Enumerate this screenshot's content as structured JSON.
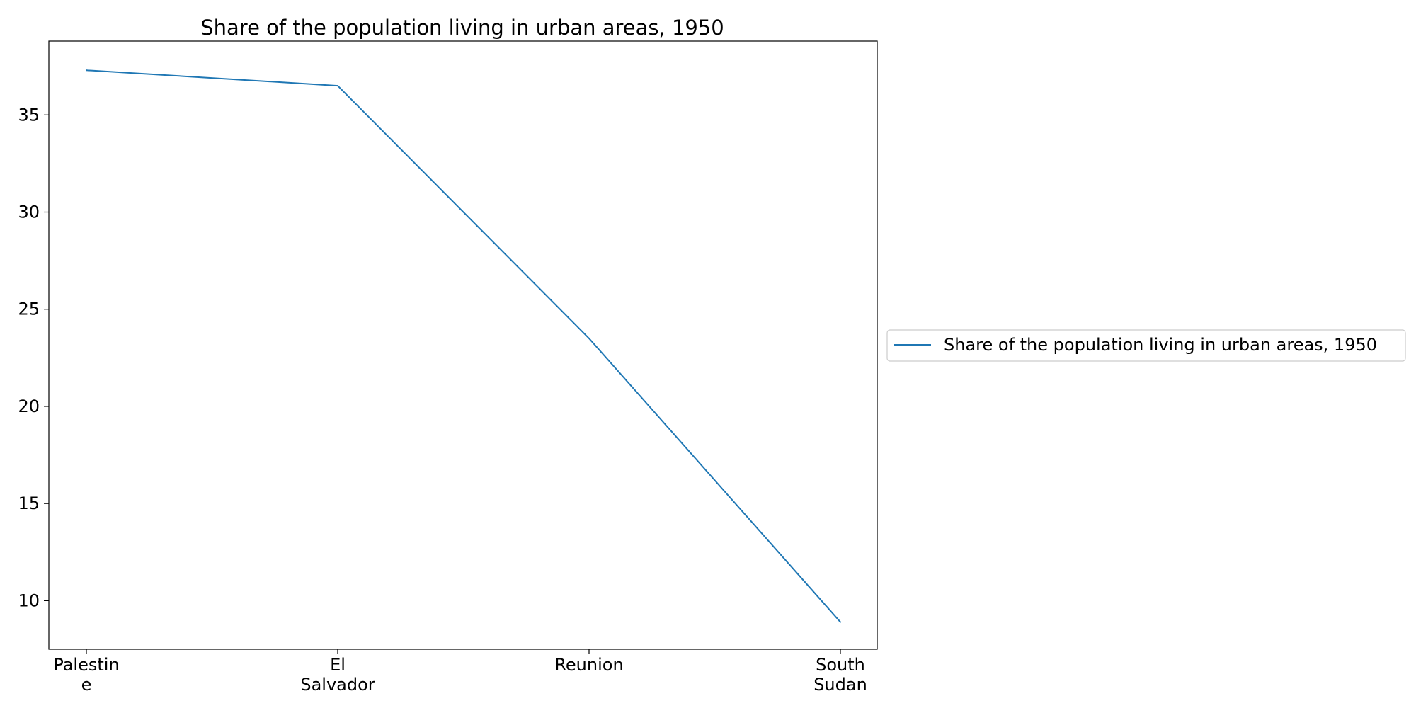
{
  "chart_data": {
    "type": "line",
    "title": "Share of the population living in urban areas, 1950",
    "xlabel": "",
    "ylabel": "",
    "categories": [
      [
        "Palestin",
        "e"
      ],
      [
        "El",
        "Salvador"
      ],
      [
        "Reunion"
      ],
      [
        "South",
        "Sudan"
      ]
    ],
    "series": [
      {
        "name": "Share of the population living in urban areas, 1950",
        "values": [
          37.3,
          36.5,
          23.5,
          8.9
        ],
        "color": "#1f77b4"
      }
    ],
    "yticks": [
      10,
      15,
      20,
      25,
      30,
      35
    ],
    "ylim": [
      7.5,
      38.8
    ],
    "grid": false,
    "legend_position": "center-right outside"
  }
}
